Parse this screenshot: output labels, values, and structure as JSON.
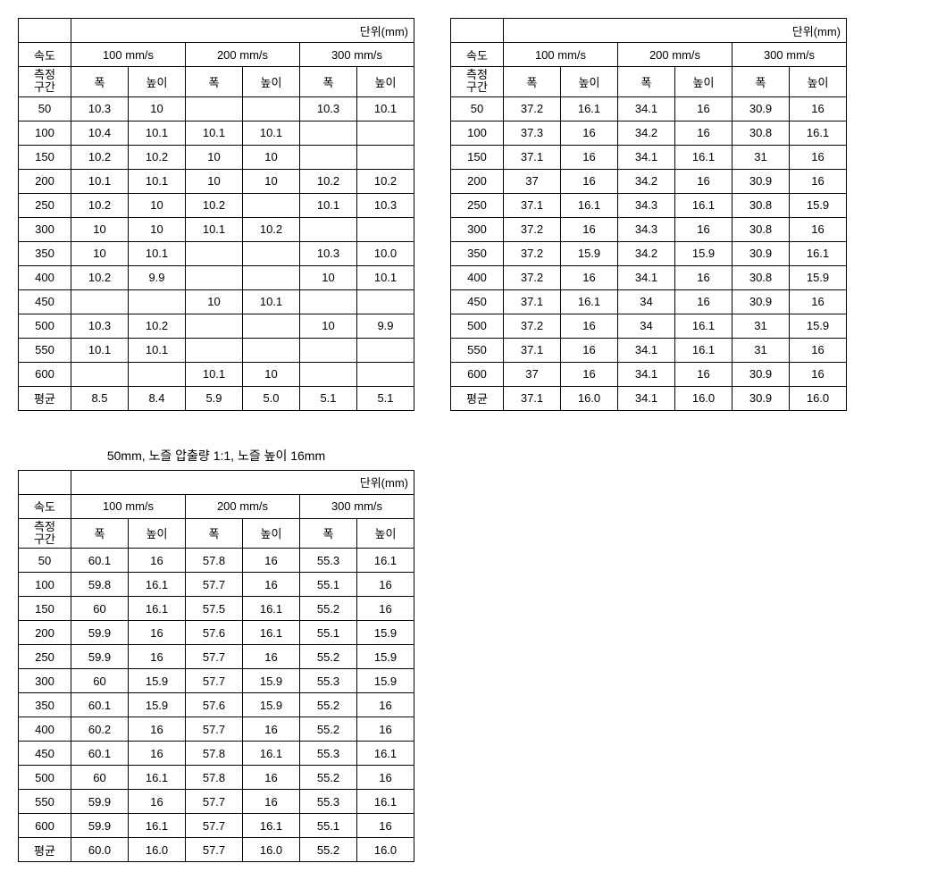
{
  "labels": {
    "unit": "단위(mm)",
    "speed": "속도",
    "section": "측정\n구간",
    "width": "폭",
    "height": "높이",
    "average": "평균"
  },
  "speed_headers": [
    "100 mm/s",
    "200 mm/s",
    "300 mm/s"
  ],
  "section_values": [
    "50",
    "100",
    "150",
    "200",
    "250",
    "300",
    "350",
    "400",
    "450",
    "500",
    "550",
    "600"
  ],
  "tables": [
    {
      "caption": "",
      "rows": [
        [
          "10.3",
          "10",
          "",
          "",
          "10.3",
          "10.1"
        ],
        [
          "10.4",
          "10.1",
          "10.1",
          "10.1",
          "",
          ""
        ],
        [
          "10.2",
          "10.2",
          "10",
          "10",
          "",
          ""
        ],
        [
          "10.1",
          "10.1",
          "10",
          "10",
          "10.2",
          "10.2"
        ],
        [
          "10.2",
          "10",
          "10.2",
          "",
          "10.1",
          "10.3"
        ],
        [
          "10",
          "10",
          "10.1",
          "10.2",
          "",
          ""
        ],
        [
          "10",
          "10.1",
          "",
          "",
          "10.3",
          "10.0"
        ],
        [
          "10.2",
          "9.9",
          "",
          "",
          "10",
          "10.1"
        ],
        [
          "",
          "",
          "10",
          "10.1",
          "",
          ""
        ],
        [
          "10.3",
          "10.2",
          "",
          "",
          "10",
          "9.9"
        ],
        [
          "10.1",
          "10.1",
          "",
          "",
          "",
          ""
        ],
        [
          "",
          "",
          "10.1",
          "10",
          "",
          ""
        ]
      ],
      "avg": [
        "8.5",
        "8.4",
        "5.9",
        "5.0",
        "5.1",
        "5.1"
      ]
    },
    {
      "caption": "",
      "rows": [
        [
          "37.2",
          "16.1",
          "34.1",
          "16",
          "30.9",
          "16"
        ],
        [
          "37.3",
          "16",
          "34.2",
          "16",
          "30.8",
          "16.1"
        ],
        [
          "37.1",
          "16",
          "34.1",
          "16.1",
          "31",
          "16"
        ],
        [
          "37",
          "16",
          "34.2",
          "16",
          "30.9",
          "16"
        ],
        [
          "37.1",
          "16.1",
          "34.3",
          "16.1",
          "30.8",
          "15.9"
        ],
        [
          "37.2",
          "16",
          "34.3",
          "16",
          "30.8",
          "16"
        ],
        [
          "37.2",
          "15.9",
          "34.2",
          "15.9",
          "30.9",
          "16.1"
        ],
        [
          "37.2",
          "16",
          "34.1",
          "16",
          "30.8",
          "15.9"
        ],
        [
          "37.1",
          "16.1",
          "34",
          "16",
          "30.9",
          "16"
        ],
        [
          "37.2",
          "16",
          "34",
          "16.1",
          "31",
          "15.9"
        ],
        [
          "37.1",
          "16",
          "34.1",
          "16.1",
          "31",
          "16"
        ],
        [
          "37",
          "16",
          "34.1",
          "16",
          "30.9",
          "16"
        ]
      ],
      "avg": [
        "37.1",
        "16.0",
        "34.1",
        "16.0",
        "30.9",
        "16.0"
      ]
    },
    {
      "caption": "50mm, 노즐 압출량 1:1, 노즐 높이 16mm",
      "rows": [
        [
          "60.1",
          "16",
          "57.8",
          "16",
          "55.3",
          "16.1"
        ],
        [
          "59.8",
          "16.1",
          "57.7",
          "16",
          "55.1",
          "16"
        ],
        [
          "60",
          "16.1",
          "57.5",
          "16.1",
          "55.2",
          "16"
        ],
        [
          "59.9",
          "16",
          "57.6",
          "16.1",
          "55.1",
          "15.9"
        ],
        [
          "59.9",
          "16",
          "57.7",
          "16",
          "55.2",
          "15.9"
        ],
        [
          "60",
          "15.9",
          "57.7",
          "15.9",
          "55.3",
          "15.9"
        ],
        [
          "60.1",
          "15.9",
          "57.6",
          "15.9",
          "55.2",
          "16"
        ],
        [
          "60.2",
          "16",
          "57.7",
          "16",
          "55.2",
          "16"
        ],
        [
          "60.1",
          "16",
          "57.8",
          "16.1",
          "55.3",
          "16.1"
        ],
        [
          "60",
          "16.1",
          "57.8",
          "16",
          "55.2",
          "16"
        ],
        [
          "59.9",
          "16",
          "57.7",
          "16",
          "55.3",
          "16.1"
        ],
        [
          "59.9",
          "16.1",
          "57.7",
          "16.1",
          "55.1",
          "16"
        ]
      ],
      "avg": [
        "60.0",
        "16.0",
        "57.7",
        "16.0",
        "55.2",
        "16.0"
      ]
    }
  ]
}
